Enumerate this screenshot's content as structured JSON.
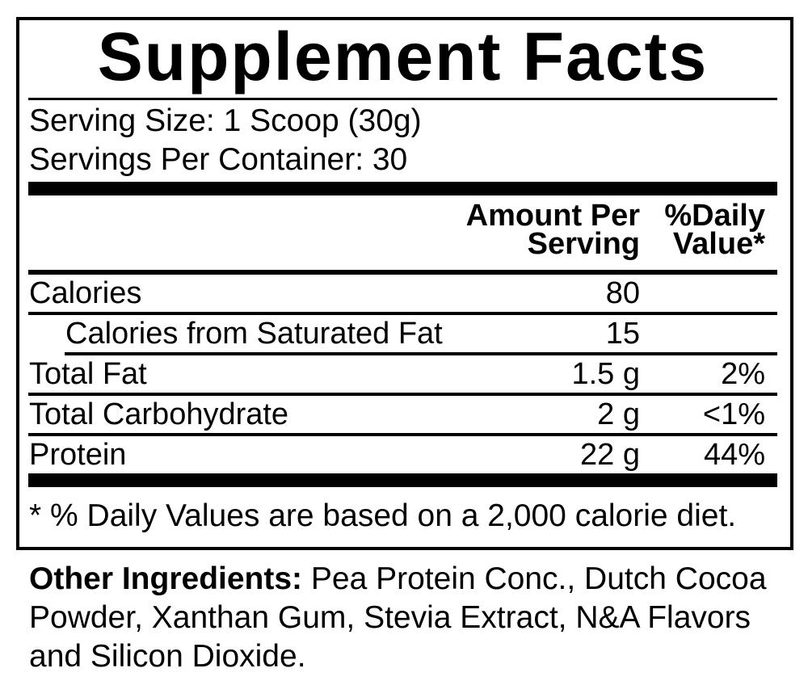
{
  "label": {
    "title": "Supplement Facts",
    "serving": {
      "serving_size": "Serving Size: 1 Scoop (30g)",
      "servings_per_container": "Servings Per Container: 30"
    },
    "columns": {
      "amount_header_line1": "Amount Per",
      "amount_header_line2": "Serving",
      "dv_header_line1": "%Daily",
      "dv_header_line2": "Value*"
    },
    "rows": [
      {
        "name": "Calories",
        "amount": "80",
        "dv": "",
        "indent": false
      },
      {
        "name": "Calories from Saturated Fat",
        "amount": "15",
        "dv": "",
        "indent": true
      },
      {
        "name": "Total Fat",
        "amount": "1.5 g",
        "dv": "2%",
        "indent": false
      },
      {
        "name": "Total Carbohydrate",
        "amount": "2 g",
        "dv": "<1%",
        "indent": false
      },
      {
        "name": "Protein",
        "amount": "22 g",
        "dv": "44%",
        "indent": false
      }
    ],
    "footnote": "* % Daily Values are based on a 2,000 calorie diet.",
    "colors": {
      "ink": "#000000",
      "background": "#ffffff"
    }
  },
  "other_ingredients": {
    "label": "Other Ingredients:",
    "text": "Pea Protein Conc., Dutch Cocoa Powder, Xanthan Gum, Stevia Extract, N&A Flavors and Silicon Dioxide."
  }
}
